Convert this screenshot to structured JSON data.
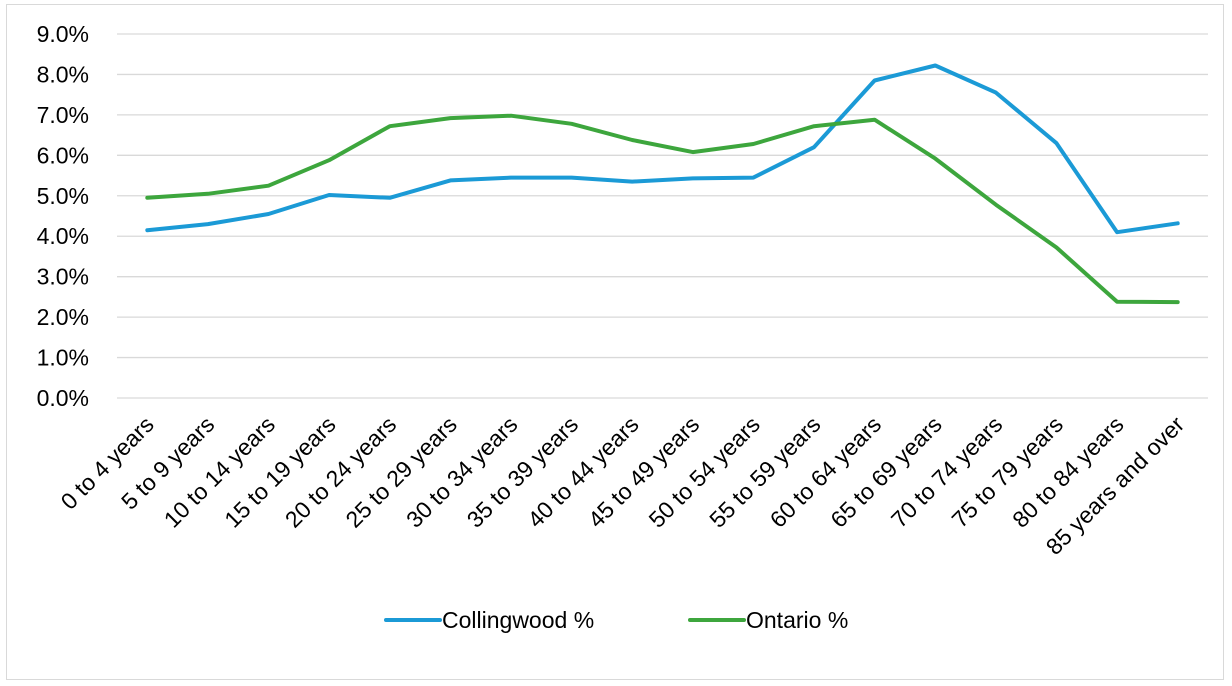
{
  "chart_data": {
    "type": "line",
    "title": "",
    "xlabel": "",
    "ylabel": "",
    "categories": [
      "0 to 4 years",
      "5 to 9 years",
      "10 to 14 years",
      "15 to 19 years",
      "20 to 24 years",
      "25 to 29 years",
      "30 to 34 years",
      "35 to 39 years",
      "40 to 44 years",
      "45 to 49 years",
      "50 to 54 years",
      "55 to 59 years",
      "60 to 64 years",
      "65 to 69 years",
      "70 to 74 years",
      "75 to 79 years",
      "80 to 84 years",
      "85 years and over"
    ],
    "series": [
      {
        "name": "Collingwood %",
        "color": "#1b9ad6",
        "values": [
          4.15,
          4.3,
          4.55,
          5.02,
          4.95,
          5.38,
          5.45,
          5.45,
          5.35,
          5.43,
          5.45,
          6.2,
          7.85,
          8.22,
          7.55,
          6.3,
          4.1,
          4.32
        ]
      },
      {
        "name": "Ontario %",
        "color": "#3da63d",
        "values": [
          4.95,
          5.05,
          5.25,
          5.88,
          6.72,
          6.92,
          6.98,
          6.78,
          6.38,
          6.08,
          6.28,
          6.72,
          6.88,
          5.92,
          4.78,
          3.72,
          2.38,
          2.37
        ]
      }
    ],
    "ylim": [
      0,
      9
    ],
    "yticks": [
      "0.0%",
      "1.0%",
      "2.0%",
      "3.0%",
      "4.0%",
      "5.0%",
      "6.0%",
      "7.0%",
      "8.0%",
      "9.0%"
    ],
    "grid": true,
    "legend_position": "bottom"
  }
}
